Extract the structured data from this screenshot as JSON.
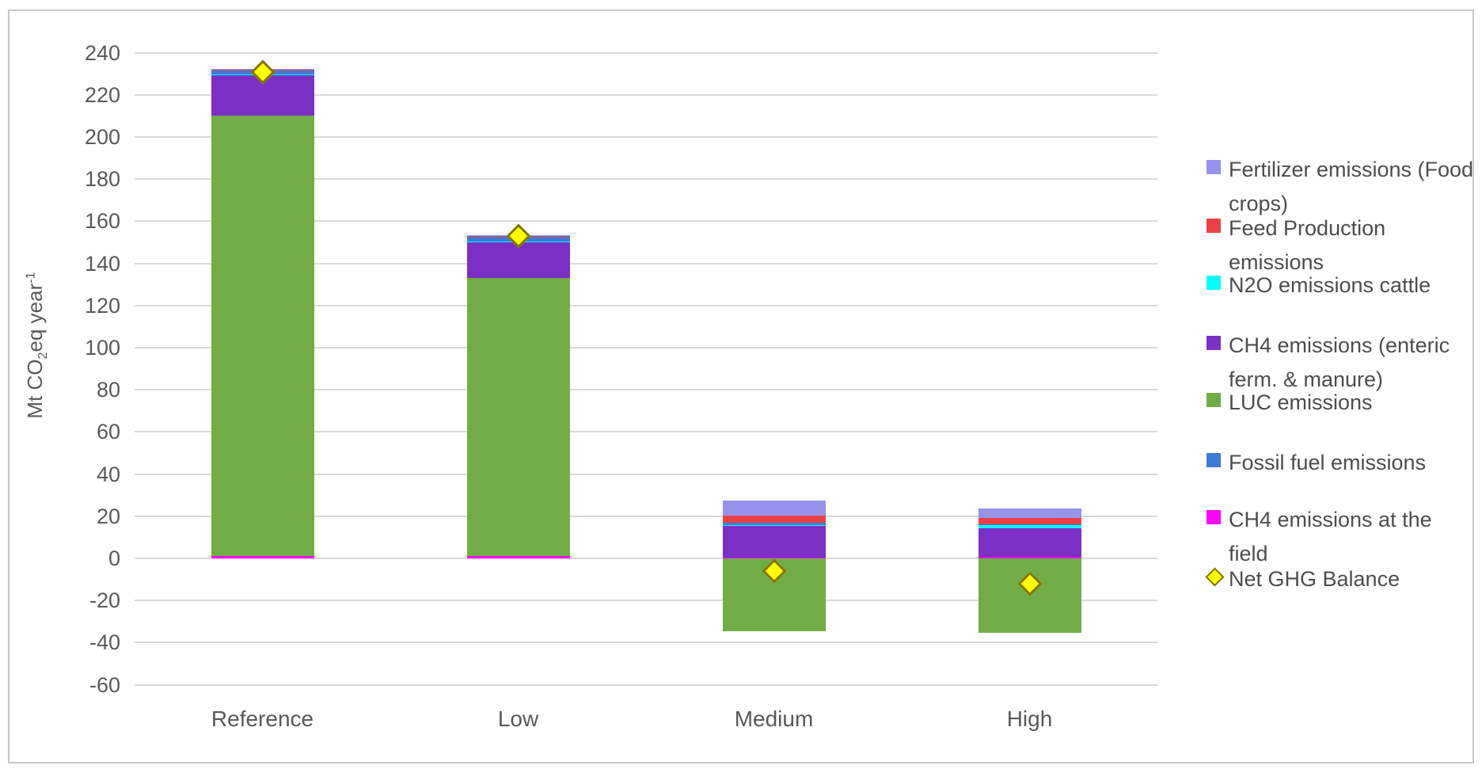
{
  "chart_data": {
    "type": "bar",
    "stacked": true,
    "title": "",
    "xlabel": "",
    "ylabel": "Mt CO₂eq year⁻¹",
    "ylabel_parts": {
      "pre": "Mt CO",
      "sub": "2",
      "mid": "eq year",
      "sup": "-1"
    },
    "ylim": [
      -60,
      240
    ],
    "ytick_step": 20,
    "grid": true,
    "legend_position": "right",
    "units": "Mt CO2eq per year",
    "categories": [
      "Reference",
      "Low",
      "Medium",
      "High"
    ],
    "series": [
      {
        "name": "CH4 emissions at the field",
        "color": "#FF00FF",
        "values": [
          1,
          1,
          0.5,
          0.7
        ]
      },
      {
        "name": "LUC emissions",
        "color": "#70AD47",
        "values": [
          209,
          132,
          -34.5,
          -35.5
        ]
      },
      {
        "name": "CH4 emissions (enteric ferm. & manure)",
        "color": "#7C2FC4",
        "values": [
          19.5,
          17,
          15,
          13.5
        ]
      },
      {
        "name": "N2O emissions cattle",
        "color": "#00FFFF",
        "values": [
          0.3,
          0.3,
          0.3,
          1.7
        ]
      },
      {
        "name": "Fossil fuel emissions",
        "color": "#3E7AD6",
        "values": [
          2,
          2.5,
          1.3,
          0.3
        ]
      },
      {
        "name": "Feed Production emissions",
        "color": "#EB4146",
        "values": [
          0.2,
          0.2,
          3.3,
          2.9
        ]
      },
      {
        "name": "Fertilizer emissions (Food crops)",
        "color": "#9793EC",
        "values": [
          0.3,
          0.3,
          7.2,
          4.4
        ]
      }
    ],
    "marker_series": {
      "name": "Net GHG Balance",
      "fill": "#FFFF00",
      "border": "#827400",
      "values": [
        231,
        153,
        -6,
        -12
      ]
    }
  },
  "legend": {
    "items": [
      {
        "line1": "Fertilizer emissions (Food",
        "line2": "crops)",
        "color": "#9793EC",
        "marker": "square"
      },
      {
        "line1": "Feed Production",
        "line2": "emissions",
        "color": "#EB4146",
        "marker": "square"
      },
      {
        "line1": "N2O emissions cattle",
        "line2": "",
        "color": "#00FFFF",
        "marker": "square"
      },
      {
        "line1": "CH4 emissions (enteric",
        "line2": "ferm. & manure)",
        "color": "#7C2FC4",
        "marker": "square"
      },
      {
        "line1": "LUC emissions",
        "line2": "",
        "color": "#70AD47",
        "marker": "square"
      },
      {
        "line1": "Fossil fuel emissions",
        "line2": "",
        "color": "#3E7AD6",
        "marker": "square"
      },
      {
        "line1": "CH4 emissions at the",
        "line2": "field",
        "color": "#FF00FF",
        "marker": "square"
      },
      {
        "line1": "Net GHG Balance",
        "line2": "",
        "color": "#FFFF00",
        "marker": "diamond"
      }
    ]
  },
  "colors": {
    "gridline": "#D9D9D9",
    "axis_text": "#595959",
    "chart_border": "#C7C7C7",
    "background": "#FFFFFF"
  }
}
